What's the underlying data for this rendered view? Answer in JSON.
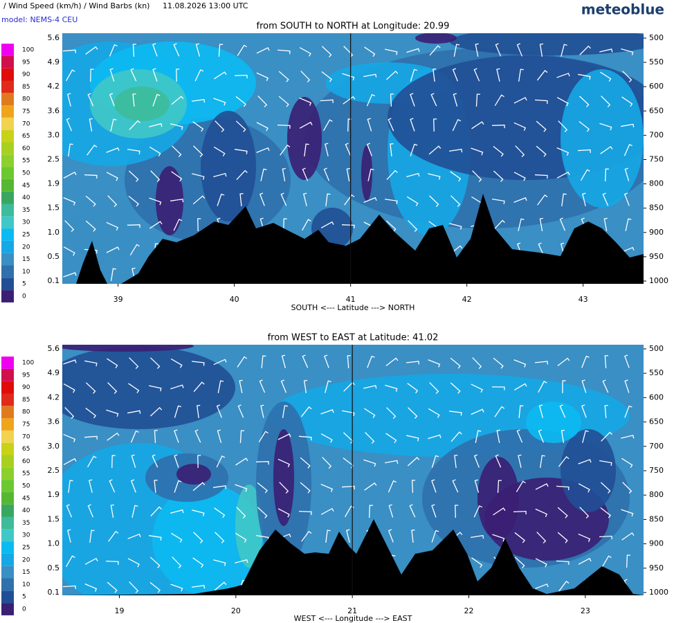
{
  "header": {
    "title": "/ Wind Speed (km/h) / Wind Barbs (kn)",
    "datetime": "11.08.2026  13:00 UTC",
    "model": "model: NEMS-4 CEU",
    "brand": "meteoblue"
  },
  "legend": {
    "levels": [
      0,
      5,
      10,
      15,
      20,
      25,
      30,
      35,
      40,
      45,
      50,
      55,
      60,
      65,
      70,
      75,
      80,
      85,
      90,
      95,
      100
    ],
    "colors": [
      "#3b1f73",
      "#214f95",
      "#2f70ad",
      "#3a8fc4",
      "#16a7e6",
      "#0cbaf2",
      "#40c8c8",
      "#3dbb9a",
      "#3aa760",
      "#56b832",
      "#6cc830",
      "#8cd02e",
      "#a8d020",
      "#c8d218",
      "#f2d24e",
      "#f0a41c",
      "#e07a1e",
      "#e02a1a",
      "#e00c0c",
      "#d0104c",
      "#f000f0"
    ]
  },
  "panels": [
    {
      "title": "from SOUTH to NORTH at Longitude:  20.99",
      "x_label": "SOUTH <---   Latitude   ---> NORTH",
      "xlim": [
        38.52,
        43.52
      ],
      "xticks": [
        39,
        40,
        41,
        42,
        43
      ],
      "marker": 41,
      "pressure_ticks": [
        500,
        550,
        600,
        650,
        700,
        750,
        800,
        850,
        900,
        950,
        1000
      ],
      "height_ticks": [
        "5.6",
        "4.9",
        "4.2",
        "3.6",
        "3.0",
        "2.5",
        "1.9",
        "1.5",
        "1.0",
        "0.5",
        "0.1"
      ]
    },
    {
      "title": "from WEST to EAST at Latitude:  41.02",
      "x_label": "WEST <---   Longitude   ---> EAST",
      "xlim": [
        18.51,
        23.5
      ],
      "xticks": [
        19,
        20,
        21,
        22,
        23
      ],
      "marker": 21,
      "pressure_ticks": [
        500,
        550,
        600,
        650,
        700,
        750,
        800,
        850,
        900,
        950,
        1000
      ],
      "height_ticks": [
        "5.6",
        "4.9",
        "4.2",
        "3.6",
        "3.0",
        "2.5",
        "1.9",
        "1.5",
        "1.0",
        "0.5",
        "0.1"
      ]
    }
  ]
}
